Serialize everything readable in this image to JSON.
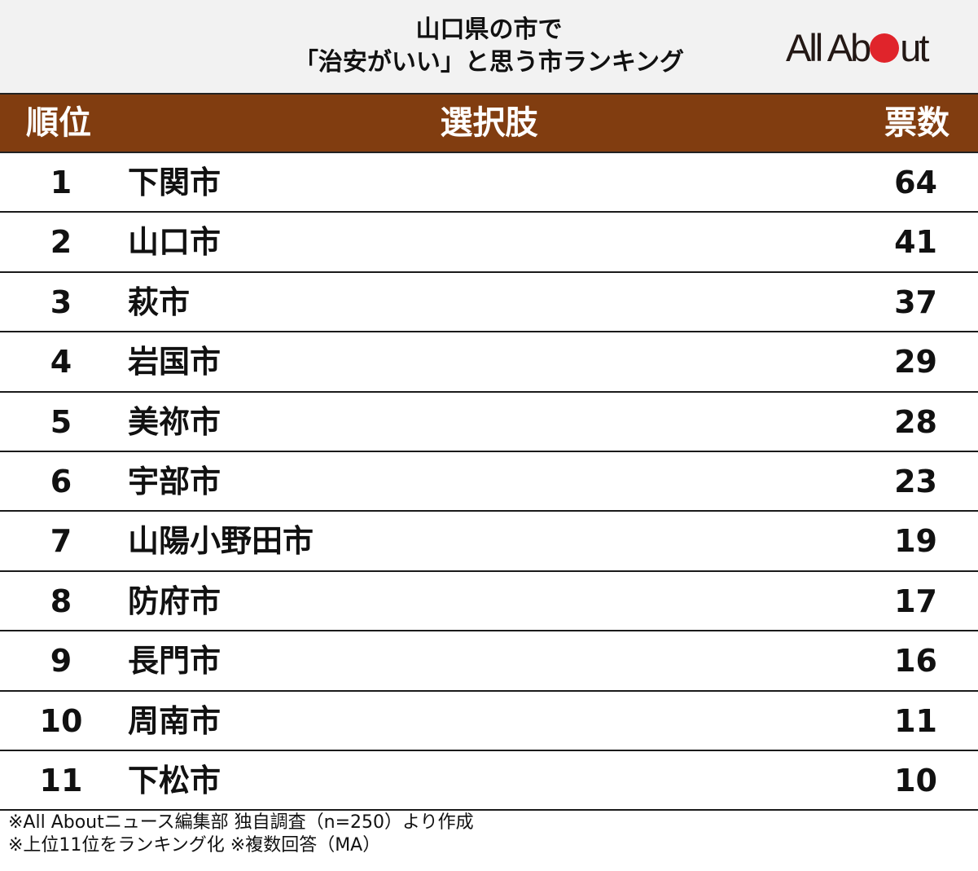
{
  "title": {
    "line1": "山口県の市で",
    "line2": "「治安がいい」と思う市ランキング"
  },
  "logo": {
    "text_before": "All Ab",
    "text_after": "ut",
    "dot_color": "#e0242b"
  },
  "table": {
    "headers": {
      "rank": "順位",
      "choice": "選択肢",
      "votes": "票数"
    },
    "header_color": "#813d10",
    "rows": [
      {
        "rank": "1",
        "name": "下関市",
        "votes": "64"
      },
      {
        "rank": "2",
        "name": "山口市",
        "votes": "41"
      },
      {
        "rank": "3",
        "name": "萩市",
        "votes": "37"
      },
      {
        "rank": "4",
        "name": "岩国市",
        "votes": "29"
      },
      {
        "rank": "5",
        "name": "美祢市",
        "votes": "28"
      },
      {
        "rank": "6",
        "name": "宇部市",
        "votes": "23"
      },
      {
        "rank": "7",
        "name": "山陽小野田市",
        "votes": "19"
      },
      {
        "rank": "8",
        "name": "防府市",
        "votes": "17"
      },
      {
        "rank": "9",
        "name": "長門市",
        "votes": "16"
      },
      {
        "rank": "10",
        "name": "周南市",
        "votes": "11"
      },
      {
        "rank": "11",
        "name": "下松市",
        "votes": "10"
      }
    ]
  },
  "notes": {
    "line1": "※All Aboutニュース編集部 独自調査（n=250）より作成",
    "line2": "※上位11位をランキング化 ※複数回答（MA）"
  },
  "chart_data": {
    "type": "table",
    "title": "山口県の市で「治安がいい」と思う市ランキング",
    "columns": [
      "順位",
      "選択肢",
      "票数"
    ],
    "categories": [
      "下関市",
      "山口市",
      "萩市",
      "岩国市",
      "美祢市",
      "宇部市",
      "山陽小野田市",
      "防府市",
      "長門市",
      "周南市",
      "下松市"
    ],
    "values": [
      64,
      41,
      37,
      29,
      28,
      23,
      19,
      17,
      16,
      11,
      10
    ],
    "ranks": [
      1,
      2,
      3,
      4,
      5,
      6,
      7,
      8,
      9,
      10,
      11
    ],
    "notes": [
      "※All Aboutニュース編集部 独自調査（n=250）より作成",
      "※上位11位をランキング化 ※複数回答（MA）"
    ]
  }
}
